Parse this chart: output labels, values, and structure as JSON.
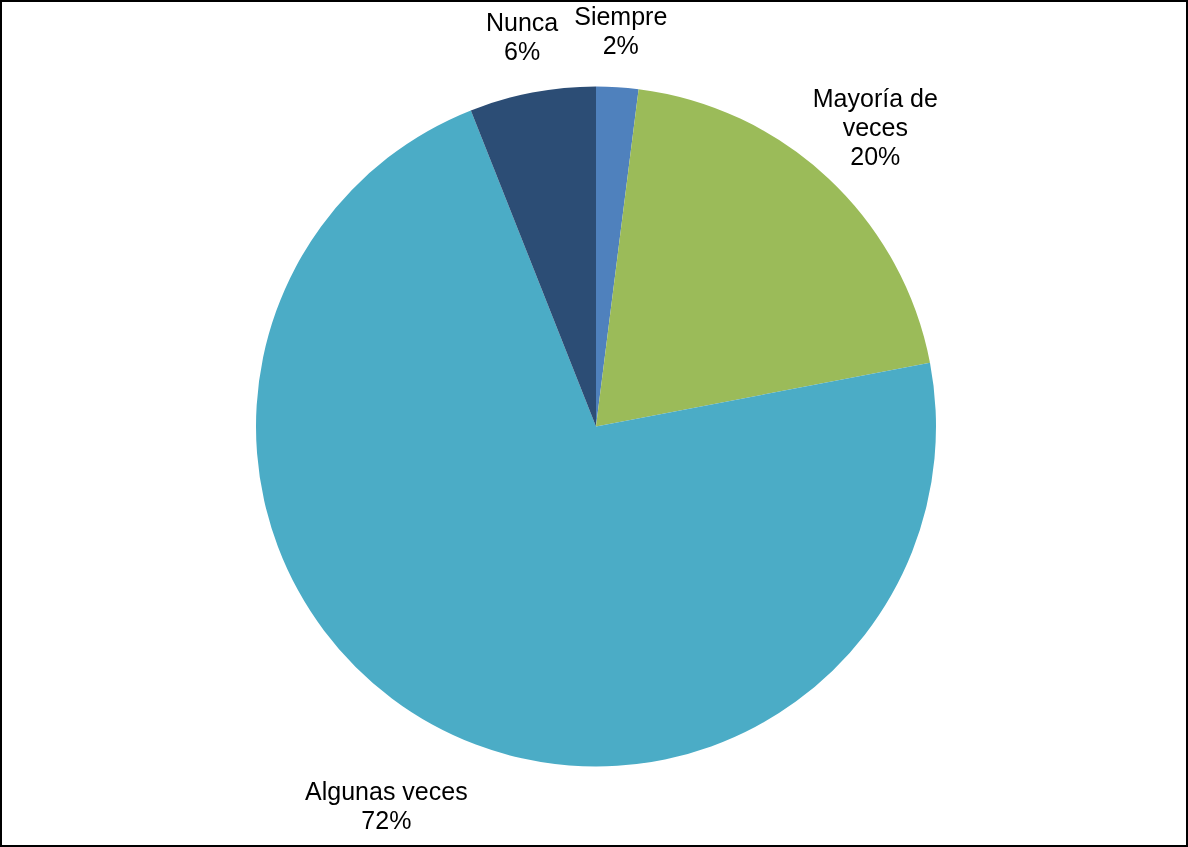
{
  "chart_data": {
    "type": "pie",
    "categories": [
      "Siempre",
      "Mayoría de veces",
      "Algunas veces",
      "Nunca"
    ],
    "values": [
      2,
      20,
      72,
      6
    ],
    "colors": [
      "#4f81bd",
      "#9bbb59",
      "#4bacc6",
      "#2c4d75"
    ],
    "value_labels": [
      "2%",
      "20%",
      "72%",
      "6%"
    ],
    "legend": false
  }
}
